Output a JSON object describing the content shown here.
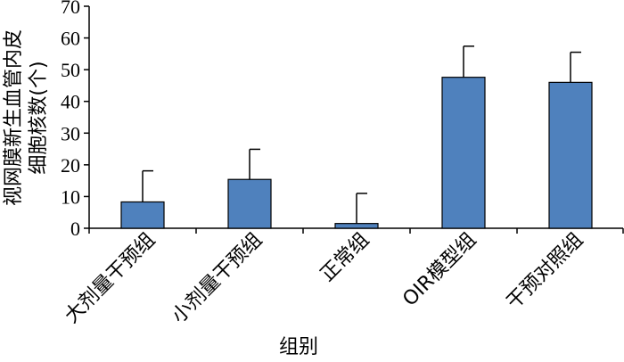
{
  "chart_data": {
    "type": "bar",
    "categories": [
      "大剂量干预组",
      "小剂量干预组",
      "正常组",
      "OIR模型组",
      "干预对照组"
    ],
    "values": [
      8.3,
      15.4,
      1.5,
      47.6,
      46.0
    ],
    "errors": [
      9.8,
      9.5,
      9.5,
      9.8,
      9.5
    ],
    "xlabel": "组别",
    "ylabel_lines": [
      "视网膜新生血管内皮",
      "细胞核数(个)"
    ],
    "ylim": [
      0,
      70
    ],
    "yticks": [
      "0",
      "10",
      "20",
      "30",
      "40",
      "50",
      "60",
      "70"
    ],
    "bar_color": "#4f81bd",
    "grid": false
  }
}
